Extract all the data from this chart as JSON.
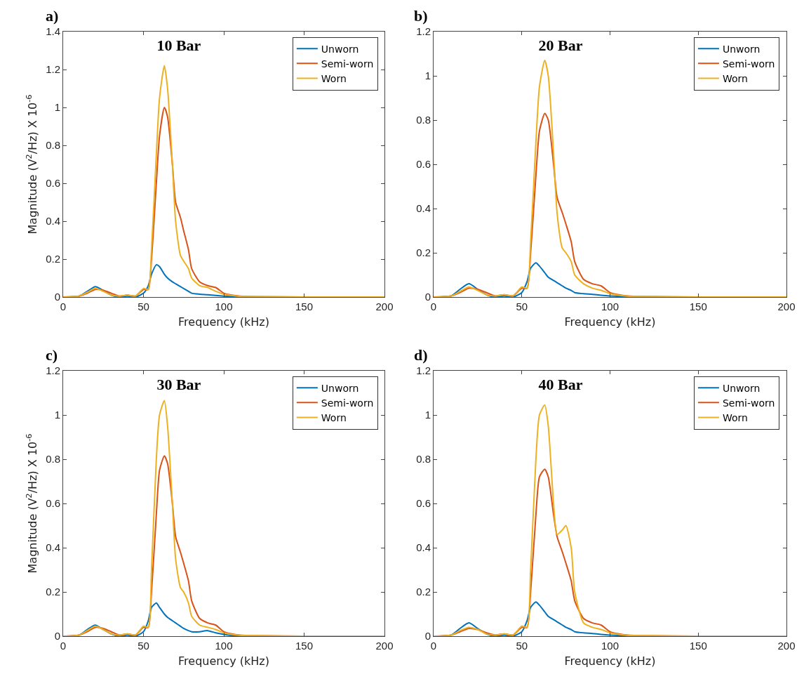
{
  "chart_data": [
    {
      "type": "line",
      "title": "10 Bar",
      "annotations": [
        "a)"
      ],
      "xlabel": "Frequency (kHz)",
      "ylabel": "Magnitude (V$^{2}$/Hz) X 10$^{-6}$",
      "xlim": [
        0,
        200
      ],
      "xticks": [
        0,
        50,
        100,
        150,
        200
      ],
      "ylim": [
        0,
        1.4
      ],
      "yticks": [
        0,
        0.2,
        0.4,
        0.6,
        0.8,
        1,
        1.2,
        1.4
      ],
      "grid": false,
      "legend": "top right",
      "line_style": "solid",
      "marker": "none",
      "x": [
        0,
        10,
        15,
        20,
        25,
        30,
        35,
        40,
        45,
        50,
        53,
        55,
        58,
        60,
        63,
        65,
        68,
        70,
        73,
        75,
        78,
        80,
        85,
        90,
        95,
        100,
        105,
        110,
        120,
        150,
        200
      ],
      "series": [
        {
          "name": "Unworn",
          "color": "#0072bd",
          "values": [
            0,
            0.005,
            0.03,
            0.055,
            0.035,
            0.01,
            0,
            0.005,
            0,
            0.02,
            0.06,
            0.12,
            0.17,
            0.16,
            0.12,
            0.1,
            0.08,
            0.07,
            0.055,
            0.045,
            0.03,
            0.02,
            0.015,
            0.012,
            0.008,
            0.005,
            0.003,
            0.002,
            null,
            null,
            null
          ]
        },
        {
          "name": "Semi-worn",
          "color": "#d95319",
          "values": [
            0,
            0.005,
            0.02,
            0.04,
            0.035,
            0.02,
            0.005,
            0.01,
            0.005,
            0.04,
            0.04,
            0.2,
            0.6,
            0.85,
            1.0,
            0.95,
            0.7,
            0.5,
            0.42,
            0.35,
            0.25,
            0.15,
            0.08,
            0.06,
            0.05,
            0.02,
            0.01,
            0.005,
            0.002,
            0,
            0
          ]
        },
        {
          "name": "Worn",
          "color": "#edb120",
          "values": [
            0,
            0.005,
            0.025,
            0.045,
            0.03,
            0.01,
            0.005,
            0.01,
            0.005,
            0.045,
            0.04,
            0.25,
            0.75,
            1.05,
            1.22,
            1.1,
            0.7,
            0.4,
            0.22,
            0.19,
            0.15,
            0.1,
            0.06,
            0.05,
            0.03,
            0.015,
            0.008,
            0.004,
            0.002,
            0,
            0
          ]
        }
      ]
    },
    {
      "type": "line",
      "title": "20 Bar",
      "annotations": [
        "b)"
      ],
      "xlabel": "Frequency (kHz)",
      "xlim": [
        0,
        200
      ],
      "xticks": [
        0,
        50,
        100,
        150,
        200
      ],
      "ylim": [
        0,
        1.2
      ],
      "yticks": [
        0,
        0.2,
        0.4,
        0.6,
        0.8,
        1,
        1.2
      ],
      "grid": false,
      "legend": "top right",
      "line_style": "solid",
      "marker": "none",
      "x": [
        0,
        10,
        15,
        20,
        25,
        30,
        35,
        40,
        45,
        50,
        53,
        55,
        58,
        60,
        63,
        65,
        68,
        70,
        73,
        75,
        78,
        80,
        85,
        90,
        95,
        100,
        105,
        110,
        120,
        150,
        200
      ],
      "series": [
        {
          "name": "Unworn",
          "color": "#0072bd",
          "values": [
            0,
            0.005,
            0.035,
            0.06,
            0.035,
            0.01,
            0,
            0.005,
            0,
            0.02,
            0.07,
            0.13,
            0.155,
            0.14,
            0.11,
            0.09,
            0.075,
            0.065,
            0.05,
            0.04,
            0.03,
            0.02,
            0.015,
            0.012,
            0.008,
            0.005,
            0.003,
            0.002,
            0,
            null,
            null
          ]
        },
        {
          "name": "Semi-worn",
          "color": "#d95319",
          "values": [
            0,
            0.005,
            0.02,
            0.04,
            0.035,
            0.02,
            0.005,
            0.01,
            0.005,
            0.04,
            0.04,
            0.2,
            0.55,
            0.75,
            0.83,
            0.8,
            0.6,
            0.45,
            0.38,
            0.33,
            0.25,
            0.16,
            0.08,
            0.06,
            0.05,
            0.02,
            0.01,
            0.005,
            0.002,
            0,
            0
          ]
        },
        {
          "name": "Worn",
          "color": "#edb120",
          "values": [
            0,
            0.005,
            0.025,
            0.045,
            0.03,
            0.01,
            0.005,
            0.01,
            0.005,
            0.045,
            0.04,
            0.25,
            0.7,
            0.95,
            1.07,
            1.0,
            0.65,
            0.38,
            0.22,
            0.2,
            0.16,
            0.1,
            0.06,
            0.04,
            0.03,
            0.015,
            0.008,
            0.004,
            0.002,
            0,
            0
          ]
        }
      ]
    },
    {
      "type": "line",
      "title": "30 Bar",
      "annotations": [
        "c)"
      ],
      "xlabel": "Frequency (kHz)",
      "ylabel": "Magnitude (V$^{2}$/Hz) X 10$^{-6}$",
      "xlim": [
        0,
        200
      ],
      "xticks": [
        0,
        50,
        100,
        150,
        200
      ],
      "ylim": [
        0,
        1.2
      ],
      "yticks": [
        0,
        0.2,
        0.4,
        0.6,
        0.8,
        1,
        1.2
      ],
      "grid": false,
      "legend": "top right",
      "line_style": "solid",
      "marker": "none",
      "x": [
        0,
        10,
        15,
        20,
        25,
        30,
        35,
        40,
        45,
        50,
        53,
        55,
        58,
        60,
        63,
        65,
        68,
        70,
        73,
        75,
        78,
        80,
        85,
        90,
        95,
        100,
        105,
        110,
        120,
        150,
        200
      ],
      "series": [
        {
          "name": "Unworn",
          "color": "#0072bd",
          "values": [
            0,
            0.005,
            0.03,
            0.05,
            0.03,
            0.01,
            0,
            0.005,
            0,
            0.02,
            0.07,
            0.13,
            0.15,
            0.13,
            0.1,
            0.085,
            0.07,
            0.06,
            0.045,
            0.035,
            0.025,
            0.02,
            0.02,
            0.025,
            0.015,
            0.008,
            0.003,
            0.002,
            0,
            null,
            null
          ]
        },
        {
          "name": "Semi-worn",
          "color": "#d95319",
          "values": [
            0,
            0.005,
            0.02,
            0.04,
            0.035,
            0.02,
            0.005,
            0.01,
            0.005,
            0.04,
            0.04,
            0.2,
            0.55,
            0.75,
            0.815,
            0.78,
            0.6,
            0.45,
            0.38,
            0.33,
            0.25,
            0.16,
            0.08,
            0.06,
            0.05,
            0.02,
            0.01,
            0.005,
            0.002,
            0,
            0
          ]
        },
        {
          "name": "Worn",
          "color": "#edb120",
          "values": [
            0,
            0.005,
            0.025,
            0.045,
            0.03,
            0.01,
            0.005,
            0.01,
            0.005,
            0.045,
            0.04,
            0.3,
            0.8,
            1.0,
            1.065,
            0.95,
            0.6,
            0.35,
            0.22,
            0.2,
            0.15,
            0.09,
            0.05,
            0.04,
            0.03,
            0.015,
            0.008,
            0.004,
            0.002,
            0,
            0
          ]
        }
      ]
    },
    {
      "type": "line",
      "title": "40 Bar",
      "annotations": [
        "d)"
      ],
      "xlabel": "Frequency (kHz)",
      "xlim": [
        0,
        200
      ],
      "xticks": [
        0,
        50,
        100,
        150,
        200
      ],
      "ylim": [
        0,
        1.2
      ],
      "yticks": [
        0,
        0.2,
        0.4,
        0.6,
        0.8,
        1,
        1.2
      ],
      "grid": false,
      "legend": "top right",
      "line_style": "solid",
      "marker": "none",
      "x": [
        0,
        10,
        15,
        20,
        25,
        30,
        35,
        40,
        45,
        50,
        53,
        55,
        58,
        60,
        63,
        65,
        68,
        70,
        73,
        75,
        78,
        80,
        85,
        90,
        95,
        100,
        105,
        110,
        120,
        150,
        200
      ],
      "series": [
        {
          "name": "Unworn",
          "color": "#0072bd",
          "values": [
            0,
            0.005,
            0.035,
            0.06,
            0.035,
            0.01,
            0,
            0.005,
            0,
            0.02,
            0.07,
            0.13,
            0.155,
            0.14,
            0.11,
            0.09,
            0.075,
            0.065,
            0.05,
            0.04,
            0.03,
            0.02,
            0.015,
            0.012,
            0.008,
            0.005,
            0.003,
            0.002,
            0,
            null,
            null
          ]
        },
        {
          "name": "Semi-worn",
          "color": "#d95319",
          "values": [
            0,
            0.005,
            0.02,
            0.035,
            0.03,
            0.015,
            0.005,
            0.01,
            0.005,
            0.04,
            0.04,
            0.2,
            0.55,
            0.72,
            0.755,
            0.72,
            0.55,
            0.45,
            0.38,
            0.33,
            0.25,
            0.16,
            0.08,
            0.06,
            0.05,
            0.02,
            0.01,
            0.005,
            0.002,
            0,
            0
          ]
        },
        {
          "name": "Worn",
          "color": "#edb120",
          "values": [
            0,
            0.005,
            0.025,
            0.04,
            0.03,
            0.01,
            0.005,
            0.01,
            0.005,
            0.045,
            0.04,
            0.3,
            0.8,
            1.0,
            1.045,
            0.95,
            0.6,
            0.46,
            0.48,
            0.5,
            0.4,
            0.2,
            0.06,
            0.04,
            0.03,
            0.015,
            0.008,
            0.004,
            0.002,
            0,
            0
          ]
        }
      ]
    }
  ]
}
